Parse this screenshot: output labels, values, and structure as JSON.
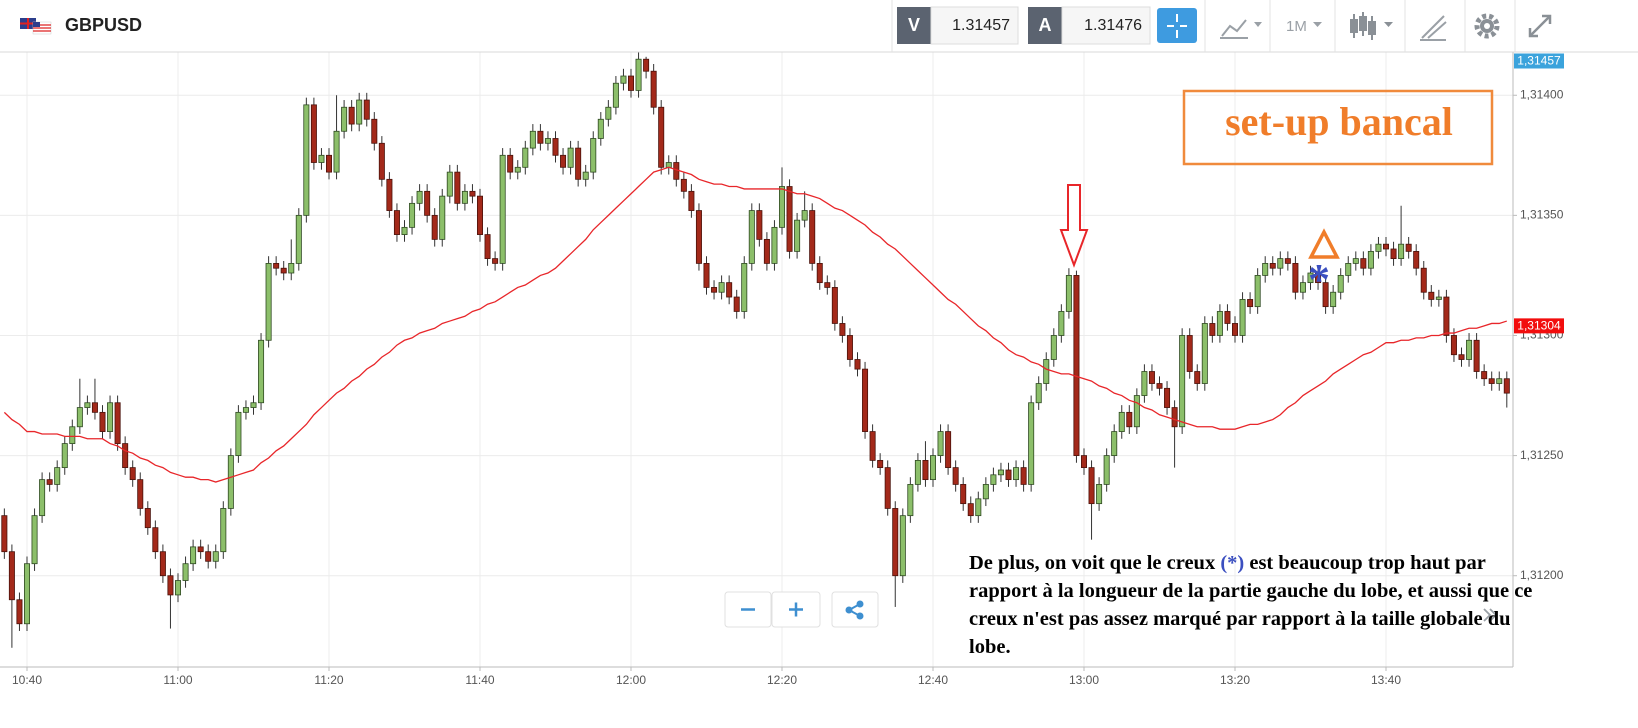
{
  "chart_data": {
    "type": "candlestick",
    "title": "GBPUSD",
    "toolbar": {
      "sell": {
        "label": "V",
        "price": 1.31457
      },
      "buy": {
        "label": "A",
        "price": 1.31476
      },
      "timeframe": "1M"
    },
    "categories": [
      null,
      null,
      null,
      "10:40",
      null,
      null,
      null,
      null,
      null,
      null,
      null,
      null,
      null,
      null,
      null,
      null,
      null,
      null,
      null,
      null,
      null,
      null,
      null,
      "11:00",
      null,
      null,
      null,
      null,
      null,
      null,
      null,
      null,
      null,
      null,
      null,
      null,
      null,
      null,
      null,
      null,
      null,
      null,
      null,
      "11:20",
      null,
      null,
      null,
      null,
      null,
      null,
      null,
      null,
      null,
      null,
      null,
      null,
      null,
      null,
      null,
      null,
      null,
      null,
      null,
      "11:40",
      null,
      null,
      null,
      null,
      null,
      null,
      null,
      null,
      null,
      null,
      null,
      null,
      null,
      null,
      null,
      null,
      null,
      null,
      null,
      "12:00",
      null,
      null,
      null,
      null,
      null,
      null,
      null,
      null,
      null,
      null,
      null,
      null,
      null,
      null,
      null,
      null,
      null,
      null,
      null,
      "12:20",
      null,
      null,
      null,
      null,
      null,
      null,
      null,
      null,
      null,
      null,
      null,
      null,
      null,
      null,
      null,
      null,
      null,
      null,
      null,
      "12:40",
      null,
      null,
      null,
      null,
      null,
      null,
      null,
      null,
      null,
      null,
      null,
      null,
      null,
      null,
      null,
      null,
      null,
      null,
      null,
      "13:00",
      null,
      null,
      null,
      null,
      null,
      null,
      null,
      null,
      null,
      null,
      null,
      null,
      null,
      null,
      null,
      null,
      null,
      null,
      null,
      "13:20",
      null,
      null,
      null,
      null,
      null,
      null,
      null,
      null,
      null,
      null,
      null,
      null,
      null,
      null,
      null,
      null,
      null,
      null,
      null,
      "13:40",
      null,
      null,
      null,
      null,
      null,
      null,
      null,
      null,
      null,
      null,
      null,
      null,
      null,
      null,
      null,
      null
    ],
    "open": [
      1.31225,
      1.3121,
      1.3119,
      1.3118,
      1.31205,
      1.31225,
      1.3124,
      1.31238,
      1.31245,
      1.31255,
      1.31262,
      1.3127,
      1.31272,
      1.31268,
      1.3126,
      1.31272,
      1.31255,
      1.31245,
      1.3124,
      1.31228,
      1.3122,
      1.3121,
      1.312,
      1.31192,
      1.31198,
      1.31205,
      1.31212,
      1.3121,
      1.31206,
      1.3121,
      1.31228,
      1.3125,
      1.31268,
      1.3127,
      1.31272,
      1.31298,
      1.3133,
      1.31328,
      1.31326,
      1.3133,
      1.3135,
      1.31396,
      1.31372,
      1.31375,
      1.31368,
      1.31385,
      1.31395,
      1.31388,
      1.31398,
      1.3139,
      1.3138,
      1.31365,
      1.31352,
      1.31342,
      1.31345,
      1.31355,
      1.3136,
      1.3135,
      1.3134,
      1.31358,
      1.31368,
      1.31355,
      1.3136,
      1.31358,
      1.31342,
      1.31332,
      1.3133,
      1.31375,
      1.31368,
      1.3137,
      1.31378,
      1.31385,
      1.3138,
      1.31382,
      1.31375,
      1.3137,
      1.31378,
      1.31365,
      1.31368,
      1.31382,
      1.3139,
      1.31395,
      1.31405,
      1.31408,
      1.31402,
      1.31415,
      1.3141,
      1.31395,
      1.3137,
      1.31372,
      1.31365,
      1.3136,
      1.31352,
      1.3133,
      1.3132,
      1.31318,
      1.31322,
      1.31316,
      1.3131,
      1.3133,
      1.31352,
      1.3134,
      1.3133,
      1.31345,
      1.31362,
      1.31335,
      1.31348,
      1.31352,
      1.3133,
      1.31322,
      1.3132,
      1.31305,
      1.313,
      1.3129,
      1.31286,
      1.3126,
      1.31248,
      1.31245,
      1.31228,
      1.312,
      1.31225,
      1.31238,
      1.31248,
      1.3124,
      1.3125,
      1.3126,
      1.31245,
      1.31238,
      1.3123,
      1.31225,
      1.31232,
      1.31238,
      1.31242,
      1.31244,
      1.3124,
      1.31245,
      1.31238,
      1.31272,
      1.3128,
      1.3129,
      1.313,
      1.3131,
      1.31325,
      1.3125,
      1.31245,
      1.3123,
      1.31238,
      1.3125,
      1.3126,
      1.31268,
      1.31262,
      1.31275,
      1.31285,
      1.3128,
      1.31278,
      1.3127,
      1.31262,
      1.313,
      1.31285,
      1.3128,
      1.31305,
      1.313,
      1.3131,
      1.31305,
      1.313,
      1.31315,
      1.31312,
      1.31325,
      1.3133,
      1.31328,
      1.31332,
      1.3133,
      1.31318,
      1.31322,
      1.31326,
      1.31322,
      1.31312,
      1.31318,
      1.31325,
      1.3133,
      1.31332,
      1.31328,
      1.31335,
      1.31338,
      1.31336,
      1.31332,
      1.31338,
      1.31335,
      1.31328,
      1.31318,
      1.31315,
      1.31316,
      1.313,
      1.31292,
      1.3129,
      1.31298,
      1.31285,
      1.31282,
      1.3128,
      1.31282
    ],
    "high": [
      1.31228,
      1.31213,
      1.31193,
      1.31208,
      1.31228,
      1.31243,
      1.31243,
      1.31248,
      1.31258,
      1.31265,
      1.31282,
      1.31275,
      1.31282,
      1.31271,
      1.31275,
      1.31275,
      1.31258,
      1.31248,
      1.31243,
      1.31231,
      1.31223,
      1.31213,
      1.31203,
      1.31201,
      1.31208,
      1.31215,
      1.31215,
      1.31213,
      1.31213,
      1.31231,
      1.31253,
      1.31271,
      1.31273,
      1.31275,
      1.31301,
      1.31333,
      1.31333,
      1.31331,
      1.3134,
      1.31353,
      1.31399,
      1.31399,
      1.31378,
      1.31378,
      1.314,
      1.31398,
      1.31398,
      1.31401,
      1.31401,
      1.31393,
      1.31383,
      1.31368,
      1.31355,
      1.31348,
      1.31358,
      1.31363,
      1.31363,
      1.31353,
      1.31361,
      1.31371,
      1.31371,
      1.31363,
      1.31363,
      1.31361,
      1.31345,
      1.31335,
      1.31378,
      1.31378,
      1.31373,
      1.31381,
      1.31388,
      1.31388,
      1.31385,
      1.31385,
      1.31378,
      1.31381,
      1.31381,
      1.31371,
      1.31385,
      1.31393,
      1.31398,
      1.31408,
      1.31411,
      1.31411,
      1.31418,
      1.31416,
      1.31413,
      1.31398,
      1.31375,
      1.31375,
      1.31368,
      1.31363,
      1.31355,
      1.31333,
      1.31323,
      1.31325,
      1.31325,
      1.31319,
      1.31333,
      1.31355,
      1.31355,
      1.31343,
      1.31348,
      1.3137,
      1.31365,
      1.31351,
      1.3136,
      1.31355,
      1.31333,
      1.31325,
      1.31323,
      1.31308,
      1.31303,
      1.31293,
      1.31289,
      1.31263,
      1.31251,
      1.31248,
      1.31231,
      1.31228,
      1.31241,
      1.31251,
      1.31256,
      1.31253,
      1.31263,
      1.31263,
      1.31248,
      1.31241,
      1.31233,
      1.31235,
      1.31241,
      1.31245,
      1.31247,
      1.31247,
      1.31248,
      1.31248,
      1.31275,
      1.31283,
      1.31293,
      1.31303,
      1.31313,
      1.31328,
      1.31327,
      1.31253,
      1.31248,
      1.31241,
      1.31253,
      1.31263,
      1.31271,
      1.31271,
      1.31278,
      1.31288,
      1.31288,
      1.31283,
      1.31281,
      1.31273,
      1.31303,
      1.31303,
      1.31288,
      1.31308,
      1.31308,
      1.31313,
      1.31313,
      1.31308,
      1.31318,
      1.31318,
      1.31328,
      1.31333,
      1.31333,
      1.31335,
      1.31335,
      1.31333,
      1.31325,
      1.31329,
      1.31329,
      1.31325,
      1.31321,
      1.31328,
      1.31333,
      1.31335,
      1.31335,
      1.31338,
      1.31341,
      1.31341,
      1.31339,
      1.31354,
      1.31341,
      1.31338,
      1.31331,
      1.31321,
      1.31319,
      1.31319,
      1.31303,
      1.31295,
      1.31301,
      1.31301,
      1.31288,
      1.31285,
      1.31285,
      1.31285
    ],
    "low": [
      1.31207,
      1.3117,
      1.31177,
      1.31177,
      1.31202,
      1.31222,
      1.31235,
      1.31235,
      1.31242,
      1.31252,
      1.31259,
      1.31267,
      1.31265,
      1.31257,
      1.31257,
      1.31252,
      1.31242,
      1.31237,
      1.31225,
      1.31217,
      1.31207,
      1.31197,
      1.31178,
      1.31189,
      1.31195,
      1.31202,
      1.31207,
      1.31203,
      1.31203,
      1.31207,
      1.31225,
      1.31247,
      1.31265,
      1.31267,
      1.31269,
      1.31295,
      1.31325,
      1.31323,
      1.31323,
      1.31327,
      1.31347,
      1.31369,
      1.31369,
      1.31365,
      1.31365,
      1.31382,
      1.31385,
      1.31385,
      1.31387,
      1.31377,
      1.31362,
      1.31349,
      1.31339,
      1.31339,
      1.31342,
      1.31352,
      1.31347,
      1.31337,
      1.31337,
      1.31355,
      1.31352,
      1.31352,
      1.31355,
      1.31339,
      1.31329,
      1.31327,
      1.31327,
      1.31365,
      1.31365,
      1.31367,
      1.31375,
      1.31377,
      1.31377,
      1.31372,
      1.31367,
      1.31367,
      1.31362,
      1.31362,
      1.31365,
      1.31379,
      1.31387,
      1.31392,
      1.31402,
      1.31399,
      1.31399,
      1.31407,
      1.31392,
      1.31367,
      1.31367,
      1.31362,
      1.31357,
      1.31349,
      1.31327,
      1.31317,
      1.31315,
      1.31315,
      1.31313,
      1.31307,
      1.31307,
      1.31327,
      1.31337,
      1.31327,
      1.31327,
      1.31342,
      1.31332,
      1.31332,
      1.31345,
      1.31327,
      1.31319,
      1.31317,
      1.31302,
      1.31297,
      1.31287,
      1.31283,
      1.31257,
      1.31245,
      1.31242,
      1.31225,
      1.31187,
      1.31197,
      1.31222,
      1.31235,
      1.31237,
      1.31237,
      1.31247,
      1.31242,
      1.31235,
      1.31227,
      1.31222,
      1.31222,
      1.31229,
      1.31235,
      1.31239,
      1.31237,
      1.31237,
      1.31235,
      1.31235,
      1.31269,
      1.31277,
      1.31287,
      1.31297,
      1.31307,
      1.31247,
      1.31242,
      1.31215,
      1.31227,
      1.31235,
      1.31247,
      1.31257,
      1.31259,
      1.31259,
      1.31272,
      1.31277,
      1.31275,
      1.31267,
      1.31245,
      1.31259,
      1.31282,
      1.31277,
      1.31277,
      1.31297,
      1.31297,
      1.31302,
      1.31297,
      1.31297,
      1.31309,
      1.31309,
      1.31322,
      1.31325,
      1.31325,
      1.31327,
      1.31315,
      1.31315,
      1.31319,
      1.31319,
      1.31309,
      1.31309,
      1.31315,
      1.31322,
      1.31327,
      1.31325,
      1.31325,
      1.31332,
      1.31333,
      1.31329,
      1.31329,
      1.31332,
      1.31325,
      1.31315,
      1.31312,
      1.31312,
      1.31297,
      1.31289,
      1.31287,
      1.31287,
      1.31282,
      1.31279,
      1.31277,
      1.31277,
      1.3127
    ],
    "close": [
      1.3121,
      1.3119,
      1.3118,
      1.31205,
      1.31225,
      1.3124,
      1.31238,
      1.31245,
      1.31255,
      1.31262,
      1.3127,
      1.31272,
      1.31268,
      1.3126,
      1.31272,
      1.31255,
      1.31245,
      1.3124,
      1.31228,
      1.3122,
      1.3121,
      1.312,
      1.31192,
      1.31198,
      1.31205,
      1.31212,
      1.3121,
      1.31206,
      1.3121,
      1.31228,
      1.3125,
      1.31268,
      1.3127,
      1.31272,
      1.31298,
      1.3133,
      1.31328,
      1.31326,
      1.3133,
      1.3135,
      1.31396,
      1.31372,
      1.31375,
      1.31368,
      1.31385,
      1.31395,
      1.31388,
      1.31398,
      1.3139,
      1.3138,
      1.31365,
      1.31352,
      1.31342,
      1.31345,
      1.31355,
      1.3136,
      1.3135,
      1.3134,
      1.31358,
      1.31368,
      1.31355,
      1.3136,
      1.31358,
      1.31342,
      1.31332,
      1.3133,
      1.31375,
      1.31368,
      1.3137,
      1.31378,
      1.31385,
      1.3138,
      1.31382,
      1.31375,
      1.3137,
      1.31378,
      1.31365,
      1.31368,
      1.31382,
      1.3139,
      1.31395,
      1.31405,
      1.31408,
      1.31402,
      1.31415,
      1.3141,
      1.31395,
      1.3137,
      1.31372,
      1.31365,
      1.3136,
      1.31352,
      1.3133,
      1.3132,
      1.31318,
      1.31322,
      1.31316,
      1.3131,
      1.3133,
      1.31352,
      1.3134,
      1.3133,
      1.31345,
      1.31362,
      1.31335,
      1.31348,
      1.31352,
      1.3133,
      1.31322,
      1.3132,
      1.31305,
      1.313,
      1.3129,
      1.31286,
      1.3126,
      1.31248,
      1.31245,
      1.31228,
      1.312,
      1.31225,
      1.31238,
      1.31248,
      1.3124,
      1.3125,
      1.3126,
      1.31245,
      1.31238,
      1.3123,
      1.31225,
      1.31232,
      1.31238,
      1.31242,
      1.31244,
      1.3124,
      1.31245,
      1.31238,
      1.31272,
      1.3128,
      1.3129,
      1.313,
      1.3131,
      1.31325,
      1.3125,
      1.31245,
      1.3123,
      1.31238,
      1.3125,
      1.3126,
      1.31268,
      1.31262,
      1.31275,
      1.31285,
      1.3128,
      1.31278,
      1.3127,
      1.31262,
      1.313,
      1.31285,
      1.3128,
      1.31305,
      1.313,
      1.3131,
      1.31305,
      1.313,
      1.31315,
      1.31312,
      1.31325,
      1.3133,
      1.31328,
      1.31332,
      1.3133,
      1.31318,
      1.31322,
      1.31326,
      1.31322,
      1.31312,
      1.31318,
      1.31325,
      1.3133,
      1.31332,
      1.31328,
      1.31335,
      1.31338,
      1.31336,
      1.31332,
      1.31338,
      1.31335,
      1.31328,
      1.31318,
      1.31315,
      1.31316,
      1.313,
      1.31292,
      1.3129,
      1.31298,
      1.31285,
      1.31282,
      1.3128,
      1.31282,
      1.31276
    ],
    "up_color": "#8cbf6a",
    "down_color": "#a3291a",
    "moving_average": {
      "color": "#e8262a",
      "values": [
        1.31268,
        1.31265,
        1.31263,
        1.3126,
        1.3126,
        1.31259,
        1.31259,
        1.31259,
        1.31258,
        1.31258,
        1.31258,
        1.31257,
        1.31257,
        1.31257,
        1.31255,
        1.31254,
        1.31252,
        1.31251,
        1.31249,
        1.31248,
        1.31246,
        1.31245,
        1.31243,
        1.31242,
        1.31241,
        1.31241,
        1.3124,
        1.3124,
        1.31239,
        1.3124,
        1.31241,
        1.31242,
        1.31243,
        1.31244,
        1.31247,
        1.31249,
        1.31252,
        1.31254,
        1.31257,
        1.3126,
        1.31263,
        1.31267,
        1.3127,
        1.31273,
        1.31276,
        1.31278,
        1.31281,
        1.31283,
        1.31286,
        1.31288,
        1.31291,
        1.31293,
        1.31296,
        1.31298,
        1.31299,
        1.31301,
        1.31302,
        1.31303,
        1.31305,
        1.31306,
        1.31307,
        1.31308,
        1.3131,
        1.31311,
        1.31313,
        1.31314,
        1.31316,
        1.31318,
        1.3132,
        1.31321,
        1.31323,
        1.31325,
        1.31326,
        1.31328,
        1.31331,
        1.31334,
        1.31337,
        1.3134,
        1.31344,
        1.31347,
        1.3135,
        1.31353,
        1.31356,
        1.31359,
        1.31362,
        1.31365,
        1.31368,
        1.31369,
        1.3137,
        1.31369,
        1.31368,
        1.31367,
        1.31365,
        1.31364,
        1.31363,
        1.31363,
        1.31362,
        1.31362,
        1.31361,
        1.31361,
        1.31361,
        1.31361,
        1.31361,
        1.31361,
        1.3136,
        1.31359,
        1.31359,
        1.31358,
        1.31357,
        1.31355,
        1.31353,
        1.31352,
        1.3135,
        1.31348,
        1.31346,
        1.31343,
        1.31341,
        1.31338,
        1.31336,
        1.31333,
        1.3133,
        1.31327,
        1.31324,
        1.31321,
        1.31318,
        1.31315,
        1.31313,
        1.3131,
        1.31307,
        1.31304,
        1.31302,
        1.31299,
        1.31297,
        1.31294,
        1.31292,
        1.31291,
        1.31289,
        1.31288,
        1.31286,
        1.31285,
        1.31284,
        1.31284,
        1.31283,
        1.31282,
        1.31281,
        1.31279,
        1.31278,
        1.31276,
        1.31275,
        1.31273,
        1.31272,
        1.3127,
        1.31269,
        1.31267,
        1.31266,
        1.31265,
        1.31264,
        1.31263,
        1.31262,
        1.31262,
        1.31262,
        1.31261,
        1.31261,
        1.31261,
        1.31262,
        1.31263,
        1.31263,
        1.31264,
        1.31265,
        1.31267,
        1.3127,
        1.31272,
        1.31275,
        1.31277,
        1.31279,
        1.31281,
        1.31284,
        1.31286,
        1.31288,
        1.3129,
        1.31292,
        1.31293,
        1.31295,
        1.31297,
        1.31297,
        1.31298,
        1.31298,
        1.31299,
        1.31299,
        1.313,
        1.313,
        1.31301,
        1.31301,
        1.31302,
        1.31303,
        1.31303,
        1.31304,
        1.31305,
        1.31305,
        1.31306
      ]
    },
    "ylim": [
      1.31162,
      1.31418
    ],
    "yticks": [
      {
        "value": 1.312,
        "label": "1,31200"
      },
      {
        "value": 1.3125,
        "label": "1,31250"
      },
      {
        "value": 1.313,
        "label": "1,31300"
      },
      {
        "value": 1.3135,
        "label": "1,31350"
      },
      {
        "value": 1.314,
        "label": "1,31400"
      }
    ],
    "grid": true,
    "price_tags": [
      {
        "value": 1.31457,
        "label": "1,31457",
        "color": "#3ba3dc"
      },
      {
        "value": 1.31304,
        "label": "1,31304",
        "color": "#f20d0d"
      }
    ],
    "annotations": {
      "setup_label": "set-up bancal",
      "asterisk": "*",
      "note": [
        "De plus, on voit que le creux ",
        "(*)",
        " est beaucoup trop haut par rapport à la longueur de la partie gauche du lobe, et aussi que ce creux n'est pas assez marqué par rapport à la taille globale du lobe."
      ]
    }
  }
}
